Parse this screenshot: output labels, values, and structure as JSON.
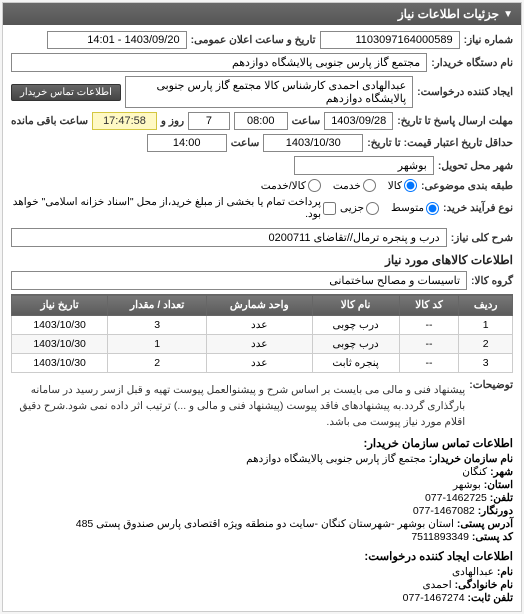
{
  "panel": {
    "title": "جزئیات اطلاعات نیاز"
  },
  "header": {
    "req_no_label": "شماره نیاز:",
    "req_no": "1103097164000589",
    "datetime_label": "تاریخ و ساعت اعلان عمومی:",
    "datetime": "1403/09/20 - 14:01",
    "buyer_unit_label": "نام دستگاه خریدار:",
    "buyer_unit": "مجتمع گاز پارس جنوبی  پالایشگاه دوازدهم",
    "creator_label": "ایجاد کننده درخواست:",
    "creator": "عبدالهادی احمدی کارشناس کالا مجتمع گاز پارس جنوبی  پالایشگاه دوازدهم",
    "contact_btn": "اطلاعات تماس خریدار",
    "deadline_label": "مهلت ارسال پاسخ تا تاریخ:",
    "deadline_date": "1403/09/28",
    "time_label": "ساعت",
    "deadline_time": "08:00",
    "days_val": "7",
    "days_label": "روز و",
    "countdown": "17:47:58",
    "remaining_label": "ساعت باقی مانده",
    "price_valid_label": "حداقل تاریخ اعتبار قیمت: تا تاریخ:",
    "price_valid_date": "1403/10/30",
    "price_valid_time": "14:00",
    "delivery_city_label": "شهر محل تحویل:",
    "delivery_city": "بوشهر",
    "subject_type_label": "طبقه بندی موضوعی:",
    "subject_opts": {
      "goods": "کالا",
      "service": "خدمت",
      "both": "کالا/خدمت"
    },
    "procurement_label": "نوع فرآیند خرید:",
    "procurement_opts": {
      "medium": "متوسط",
      "small": "جزیی"
    },
    "payment_note": "پرداخت تمام یا بخشی از مبلغ خرید،از محل \"اسناد خزانه اسلامی\" خواهد بود."
  },
  "need": {
    "title_label": "شرح کلی نیاز:",
    "title": "درب و پنجره ترمال//تقاضای 0200711"
  },
  "goods": {
    "section_title": "اطلاعات کالاهای مورد نیاز",
    "group_label": "گروه کالا:",
    "group": "تاسیسات و مصالح ساختمانی",
    "columns": {
      "row": "ردیف",
      "code": "کد کالا",
      "name": "نام کالا",
      "unit": "واحد شمارش",
      "qty": "تعداد / مقدار",
      "date": "تاریخ نیاز"
    },
    "rows": [
      {
        "row": "1",
        "code": "--",
        "name": "درب چوبی",
        "unit": "عدد",
        "qty": "3",
        "date": "1403/10/30"
      },
      {
        "row": "2",
        "code": "--",
        "name": "درب چوبی",
        "unit": "عدد",
        "qty": "1",
        "date": "1403/10/30"
      },
      {
        "row": "3",
        "code": "--",
        "name": "پنجره ثابت",
        "unit": "عدد",
        "qty": "2",
        "date": "1403/10/30"
      }
    ]
  },
  "desc": {
    "label": "توضیحات:",
    "text": "پیشنهاد فنی و مالی می بایست بر اساس شرح و پیشنوالعمل پیوست تهیه و قبل ازسر رسید در سامانه بارگذاری گردد.به پیشنهادهای فاقد پیوست (پیشنهاد فنی و مالی و ...) ترتیب اثر داده نمی شود.شرح دقیق اقلام مورد نیاز پیوست می باشد."
  },
  "contact_org": {
    "title": "اطلاعات تماس سازمان خریدار:",
    "org_name_label": "نام سازمان خریدار:",
    "org_name": "مجتمع گاز پارس جنوبی پالایشگاه دوازدهم",
    "city_label": "شهر:",
    "city": "کنگان",
    "province_label": "استان:",
    "province": "بوشهر",
    "phone_label": "تلفن:",
    "phone": "1462725-077",
    "fax_label": "دورنگار:",
    "fax": "1467082-077",
    "address_label": "آدرس پستی:",
    "address": "استان بوشهر -شهرستان کنگان -سایت دو منطقه ویژه اقتصادی پارس صندوق پستی 485",
    "postal_label": "کد پستی:",
    "postal": "7511893349"
  },
  "contact_creator": {
    "title": "اطلاعات ایجاد کننده درخواست:",
    "fname_label": "نام:",
    "fname": "عبدالهادی",
    "lname_label": "نام خانوادگی:",
    "lname": "احمدی",
    "phone_label": "تلفن ثابت:",
    "phone": "1467274-077"
  }
}
